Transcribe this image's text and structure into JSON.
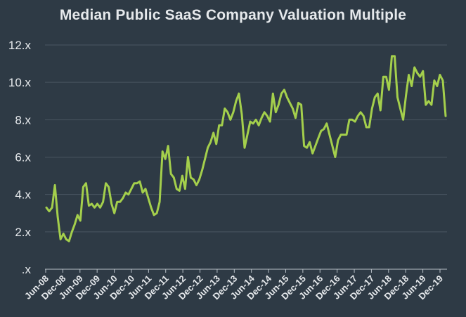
{
  "chart_data": {
    "type": "line",
    "title": "Median Public SaaS Company Valuation Multiple",
    "xlabel": "",
    "ylabel": "",
    "ylim": [
      0,
      12
    ],
    "yticks": [
      {
        "value": 0,
        "label": ".x"
      },
      {
        "value": 2,
        "label": "2.x"
      },
      {
        "value": 4,
        "label": "4.x"
      },
      {
        "value": 6,
        "label": "6.x"
      },
      {
        "value": 8,
        "label": "8.x"
      },
      {
        "value": 10,
        "label": "10.x"
      },
      {
        "value": 12,
        "label": "12.x"
      }
    ],
    "xticks": [
      "Jun-08",
      "Dec-08",
      "Jun-09",
      "Dec-09",
      "Jun-10",
      "Dec-10",
      "Jun-11",
      "Dec-11",
      "Jun-12",
      "Dec-12",
      "Jun-13",
      "Dec-13",
      "Jun-14",
      "Dec-14",
      "Jun-15",
      "Dec-15",
      "Jun-16",
      "Dec-16",
      "Jun-17",
      "Dec-17",
      "Jun-18",
      "Dec-18",
      "Jun-19",
      "Dec-19"
    ],
    "grid": true,
    "line_color": "#a4cf4c",
    "series": [
      {
        "values": [
          3.3,
          3.1,
          3.3,
          4.5,
          2.8,
          1.6,
          1.9,
          1.6,
          1.5,
          2.0,
          2.4,
          2.9,
          2.6,
          4.4,
          4.6,
          3.4,
          3.5,
          3.3,
          3.5,
          3.3,
          3.6,
          4.6,
          4.4,
          3.5,
          3.0,
          3.6,
          3.6,
          3.8,
          4.1,
          4.0,
          4.3,
          4.6,
          4.6,
          4.7,
          4.1,
          4.3,
          3.8,
          3.3,
          2.9,
          3.0,
          3.6,
          6.3,
          5.9,
          6.6,
          5.1,
          4.9,
          4.3,
          4.2,
          5.0,
          4.3,
          6.0,
          4.9,
          4.8,
          4.5,
          4.8,
          5.3,
          5.9,
          6.5,
          6.8,
          7.3,
          6.7,
          7.7,
          7.7,
          8.6,
          8.4,
          8.0,
          8.4,
          9.0,
          9.4,
          8.3,
          6.5,
          7.2,
          7.9,
          7.8,
          8.0,
          7.7,
          8.1,
          8.4,
          8.2,
          7.9,
          9.4,
          8.4,
          8.8,
          9.4,
          9.6,
          9.2,
          8.9,
          8.6,
          8.1,
          8.9,
          8.8,
          6.6,
          6.5,
          6.8,
          6.2,
          6.6,
          7.0,
          7.4,
          7.5,
          7.8,
          7.2,
          6.6,
          6.0,
          6.9,
          7.2,
          7.2,
          7.2,
          8.0,
          8.0,
          7.9,
          8.2,
          8.4,
          8.2,
          7.6,
          7.6,
          8.6,
          9.2,
          9.4,
          8.5,
          10.3,
          10.3,
          9.6,
          11.4,
          11.4,
          9.2,
          8.6,
          8.0,
          9.3,
          10.4,
          9.8,
          10.8,
          10.5,
          10.3,
          10.6,
          8.8,
          9.0,
          8.8,
          10.1,
          9.8,
          10.4,
          10.1,
          8.2
        ]
      }
    ]
  }
}
